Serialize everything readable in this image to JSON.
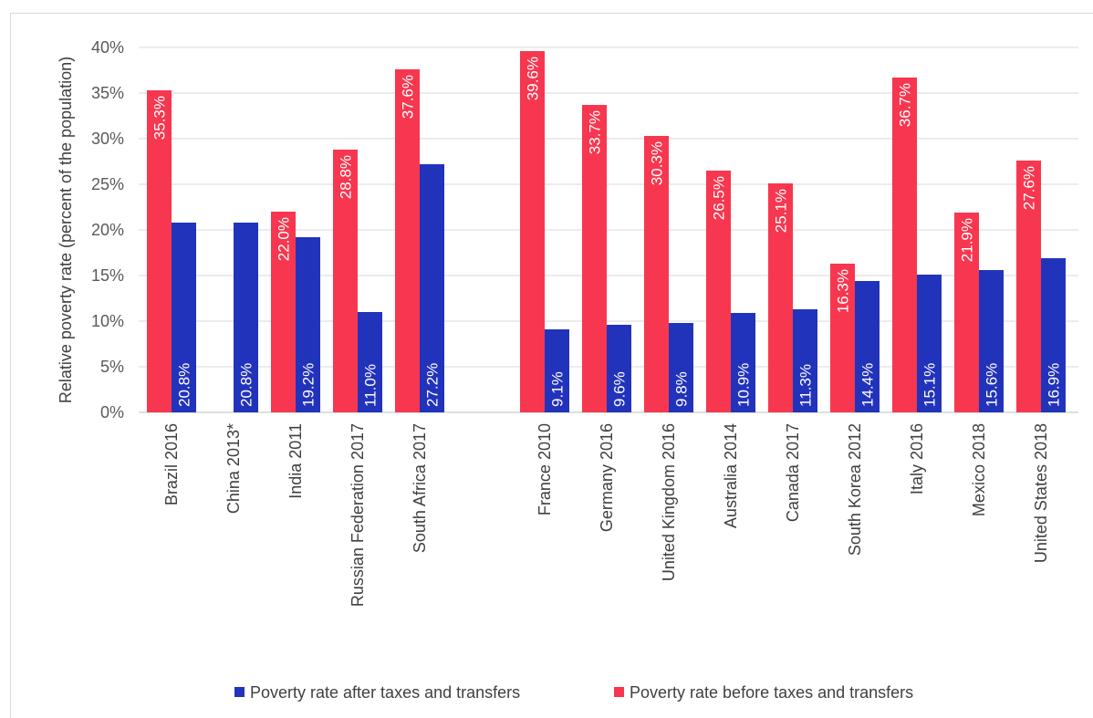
{
  "chart_data": {
    "type": "bar",
    "ylabel": "Relative poverty rate (percent of the population)",
    "xlabel": "",
    "ylim": [
      0,
      40
    ],
    "yticks": [
      "0%",
      "5%",
      "10%",
      "15%",
      "20%",
      "25%",
      "30%",
      "35%",
      "40%"
    ],
    "grid": true,
    "legend_position": "bottom",
    "categories": [
      "Brazil 2016",
      "China 2013*",
      "India 2011",
      "Russian Federation 2017",
      "South Africa 2017",
      "France 2010",
      "Germany 2016",
      "United Kingdom 2016",
      "Australia 2014",
      "Canada 2017",
      "South Korea 2012",
      "Italy 2016",
      "Mexico 2018",
      "United States 2018"
    ],
    "series": [
      {
        "name": "Poverty rate before taxes and transfers",
        "color": "#f7374f",
        "values": [
          35.3,
          null,
          22.0,
          28.8,
          37.6,
          39.6,
          33.7,
          30.3,
          26.5,
          25.1,
          16.3,
          36.7,
          21.9,
          27.6
        ],
        "labels": [
          "35.3%",
          "",
          "22.0%",
          "28.8%",
          "37.6%",
          "39.6%",
          "33.7%",
          "30.3%",
          "26.5%",
          "25.1%",
          "16.3%",
          "36.7%",
          "21.9%",
          "27.6%"
        ]
      },
      {
        "name": "Poverty rate after taxes and transfers",
        "color": "#2233bb",
        "values": [
          20.8,
          20.8,
          19.2,
          11.0,
          27.2,
          9.1,
          9.6,
          9.8,
          10.9,
          11.3,
          14.4,
          15.1,
          15.6,
          16.9
        ],
        "labels": [
          "20.8%",
          "20.8%",
          "19.2%",
          "11.0%",
          "27.2%",
          "9.1%",
          "9.6%",
          "9.8%",
          "10.9%",
          "11.3%",
          "14.4%",
          "15.1%",
          "15.6%",
          "16.9%"
        ]
      }
    ],
    "legend": [
      {
        "label": "Poverty rate after taxes and transfers",
        "color": "#2233bb"
      },
      {
        "label": "Poverty rate before taxes and transfers",
        "color": "#f7374f"
      }
    ]
  }
}
